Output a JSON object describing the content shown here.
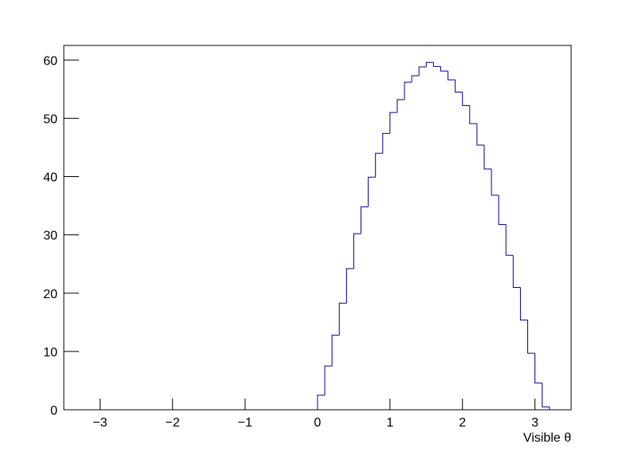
{
  "chart_data": {
    "type": "histogram",
    "x_label": "Visible θ",
    "bins": [
      0,
      0.1,
      0.2,
      0.3,
      0.4,
      0.5,
      0.6,
      0.7,
      0.8,
      0.9,
      1.0,
      1.1,
      1.2,
      1.3,
      1.4,
      1.5,
      1.6,
      1.7,
      1.8,
      1.9,
      2.0,
      2.1,
      2.2,
      2.3,
      2.4,
      2.5,
      2.6,
      2.7,
      2.8,
      2.9,
      3.0,
      3.1,
      3.2
    ],
    "values": [
      2.5,
      7.5,
      12.8,
      18.3,
      24.2,
      30.2,
      34.8,
      39.9,
      44.0,
      47.4,
      51.0,
      53.2,
      56.2,
      57.3,
      58.8,
      59.6,
      58.9,
      58.1,
      56.6,
      54.5,
      52.2,
      49.1,
      45.4,
      41.3,
      36.8,
      31.8,
      26.5,
      21.0,
      15.4,
      9.7,
      4.6,
      0.5
    ],
    "color": "#000099",
    "xlim": [
      -3.5,
      3.5
    ],
    "xticks": [
      {
        "value": -3,
        "label": "−3"
      },
      {
        "value": -2,
        "label": "−2"
      },
      {
        "value": -1,
        "label": "−1"
      },
      0,
      1,
      2,
      3
    ],
    "ylim": [
      0,
      62.5
    ],
    "yticks": [
      0,
      10,
      20,
      30,
      40,
      50,
      60
    ]
  }
}
